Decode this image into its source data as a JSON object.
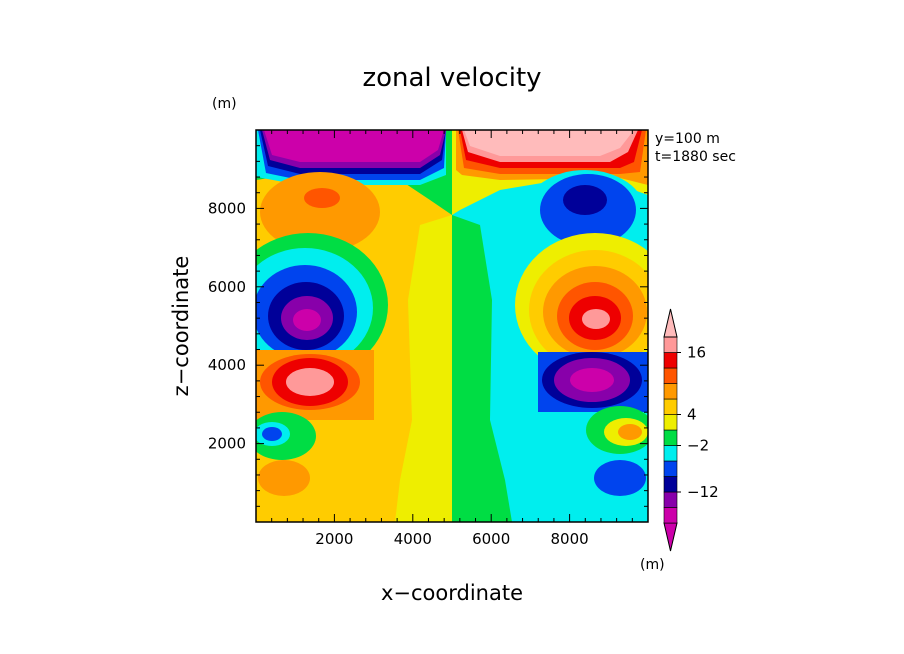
{
  "chart_data": {
    "type": "heatmap",
    "title": "zonal velocity",
    "xlabel": "x−coordinate",
    "ylabel": "z−coordinate",
    "x_unit": "(m)",
    "y_unit": "(m)",
    "annotations": [
      "y=100 m",
      "t=1880 sec"
    ],
    "xlim": [
      0,
      10000
    ],
    "ylim": [
      0,
      10000
    ],
    "x_ticks": [
      2000,
      4000,
      6000,
      8000
    ],
    "x_tick_labels": [
      "2000",
      "4000",
      "6000",
      "8000"
    ],
    "y_ticks": [
      2000,
      4000,
      6000,
      8000
    ],
    "y_tick_labels": [
      "2000",
      "4000",
      "6000",
      "8000"
    ],
    "colorbar": {
      "labels": [
        {
          "value": 16,
          "text": "16"
        },
        {
          "value": 4,
          "text": "4"
        },
        {
          "value": -2,
          "text": "−2"
        },
        {
          "value": -12,
          "text": "−12"
        }
      ],
      "colors_bottom_to_top": [
        "#cc00aa",
        "#8800aa",
        "#000099",
        "#0044ee",
        "#00eeee",
        "#00dd44",
        "#eeee00",
        "#ffcc00",
        "#ff9900",
        "#ff5500",
        "#ee0000",
        "#ff9999",
        "#ffbbbb"
      ]
    },
    "features": [
      {
        "x": 1500,
        "z": 5200,
        "kind": "min"
      },
      {
        "x": 1500,
        "z": 3600,
        "kind": "max"
      },
      {
        "x": 1500,
        "z": 7900,
        "kind": "max"
      },
      {
        "x": 8500,
        "z": 5200,
        "kind": "max"
      },
      {
        "x": 8500,
        "z": 3600,
        "kind": "min"
      },
      {
        "x": 8500,
        "z": 7900,
        "kind": "min"
      }
    ]
  }
}
